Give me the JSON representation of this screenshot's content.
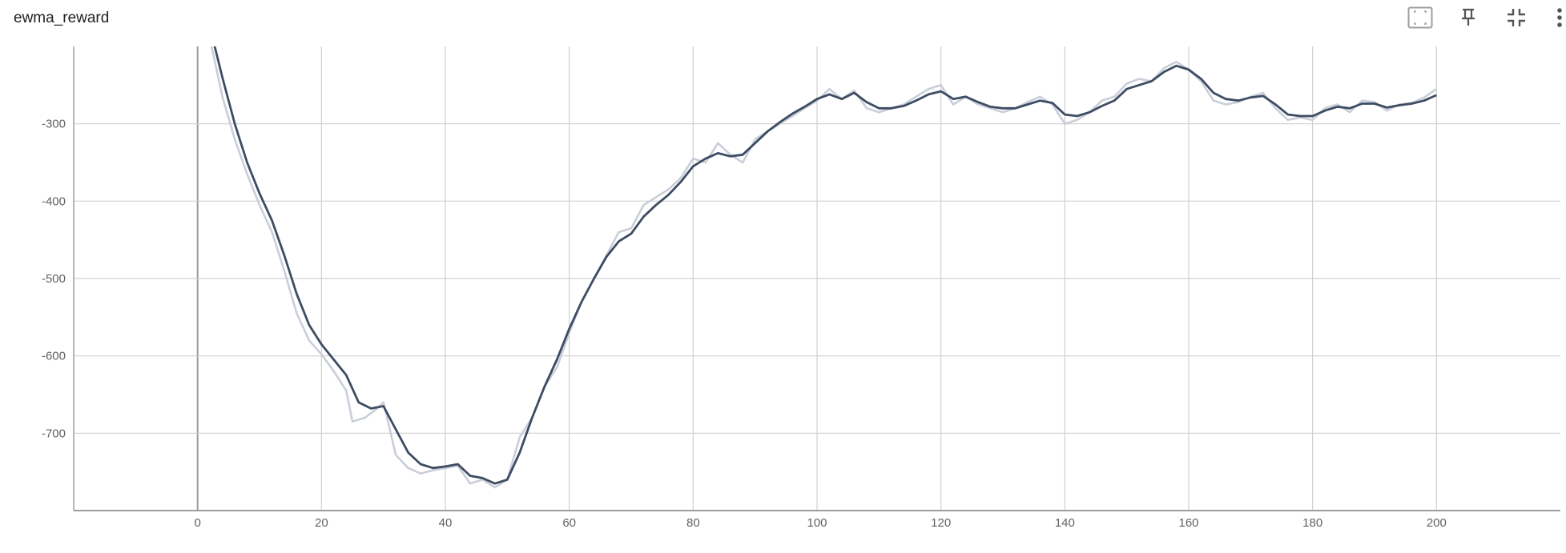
{
  "card": {
    "title": "ewma_reward",
    "toolbar": {
      "fit": "fit-domain-icon",
      "pin": "pin-icon",
      "collapse": "collapse-icon",
      "more": "more-vert-icon"
    }
  },
  "colors": {
    "smoothed": "#3d4c63",
    "raw": "#c9ced9",
    "grid": "#d0d0d0",
    "axis": "#9e9e9e",
    "zero_line": "#9a9a9a"
  },
  "chart_data": {
    "type": "line",
    "title": "ewma_reward",
    "xlabel": "",
    "ylabel": "",
    "xlim": [
      -20,
      220
    ],
    "ylim": [
      -800,
      -200
    ],
    "x_ticks": [
      0,
      20,
      40,
      60,
      80,
      100,
      120,
      140,
      160,
      180,
      200
    ],
    "y_ticks": [
      -300,
      -400,
      -500,
      -600,
      -700
    ],
    "grid": true,
    "legend": "none",
    "series": [
      {
        "role": "raw",
        "points": [
          [
            2,
            -190
          ],
          [
            4,
            -265
          ],
          [
            6,
            -320
          ],
          [
            8,
            -365
          ],
          [
            10,
            -405
          ],
          [
            12,
            -440
          ],
          [
            14,
            -490
          ],
          [
            16,
            -545
          ],
          [
            18,
            -580
          ],
          [
            20,
            -598
          ],
          [
            22,
            -620
          ],
          [
            24,
            -645
          ],
          [
            25,
            -685
          ],
          [
            27,
            -680
          ],
          [
            29,
            -668
          ],
          [
            30,
            -660
          ],
          [
            32,
            -728
          ],
          [
            34,
            -745
          ],
          [
            36,
            -752
          ],
          [
            38,
            -748
          ],
          [
            40,
            -745
          ],
          [
            42,
            -742
          ],
          [
            44,
            -765
          ],
          [
            46,
            -760
          ],
          [
            48,
            -770
          ],
          [
            50,
            -760
          ],
          [
            52,
            -705
          ],
          [
            54,
            -680
          ],
          [
            56,
            -640
          ],
          [
            58,
            -615
          ],
          [
            60,
            -570
          ],
          [
            62,
            -530
          ],
          [
            64,
            -500
          ],
          [
            66,
            -470
          ],
          [
            68,
            -440
          ],
          [
            70,
            -435
          ],
          [
            72,
            -405
          ],
          [
            74,
            -395
          ],
          [
            76,
            -385
          ],
          [
            78,
            -370
          ],
          [
            80,
            -345
          ],
          [
            82,
            -350
          ],
          [
            84,
            -325
          ],
          [
            86,
            -340
          ],
          [
            88,
            -350
          ],
          [
            90,
            -320
          ],
          [
            92,
            -310
          ],
          [
            94,
            -300
          ],
          [
            96,
            -290
          ],
          [
            98,
            -280
          ],
          [
            100,
            -270
          ],
          [
            102,
            -255
          ],
          [
            104,
            -268
          ],
          [
            106,
            -257
          ],
          [
            108,
            -280
          ],
          [
            110,
            -285
          ],
          [
            112,
            -280
          ],
          [
            114,
            -275
          ],
          [
            116,
            -265
          ],
          [
            118,
            -255
          ],
          [
            120,
            -250
          ],
          [
            122,
            -275
          ],
          [
            124,
            -265
          ],
          [
            126,
            -275
          ],
          [
            128,
            -280
          ],
          [
            130,
            -285
          ],
          [
            132,
            -280
          ],
          [
            134,
            -272
          ],
          [
            136,
            -265
          ],
          [
            138,
            -275
          ],
          [
            140,
            -300
          ],
          [
            142,
            -295
          ],
          [
            144,
            -285
          ],
          [
            146,
            -270
          ],
          [
            148,
            -265
          ],
          [
            150,
            -248
          ],
          [
            152,
            -242
          ],
          [
            154,
            -245
          ],
          [
            156,
            -228
          ],
          [
            158,
            -220
          ],
          [
            160,
            -230
          ],
          [
            162,
            -245
          ],
          [
            164,
            -270
          ],
          [
            166,
            -275
          ],
          [
            168,
            -272
          ],
          [
            170,
            -265
          ],
          [
            172,
            -260
          ],
          [
            174,
            -280
          ],
          [
            176,
            -295
          ],
          [
            178,
            -292
          ],
          [
            180,
            -295
          ],
          [
            182,
            -280
          ],
          [
            184,
            -275
          ],
          [
            186,
            -285
          ],
          [
            188,
            -270
          ],
          [
            190,
            -272
          ],
          [
            192,
            -283
          ],
          [
            194,
            -275
          ],
          [
            196,
            -273
          ],
          [
            198,
            -266
          ],
          [
            200,
            -255
          ]
        ]
      },
      {
        "role": "smoothed",
        "points": [
          [
            2,
            -175
          ],
          [
            4,
            -240
          ],
          [
            6,
            -300
          ],
          [
            8,
            -350
          ],
          [
            10,
            -390
          ],
          [
            12,
            -425
          ],
          [
            14,
            -470
          ],
          [
            16,
            -520
          ],
          [
            18,
            -560
          ],
          [
            20,
            -585
          ],
          [
            22,
            -605
          ],
          [
            24,
            -625
          ],
          [
            26,
            -660
          ],
          [
            28,
            -668
          ],
          [
            30,
            -665
          ],
          [
            32,
            -695
          ],
          [
            34,
            -725
          ],
          [
            36,
            -740
          ],
          [
            38,
            -745
          ],
          [
            40,
            -743
          ],
          [
            42,
            -740
          ],
          [
            44,
            -755
          ],
          [
            46,
            -758
          ],
          [
            48,
            -765
          ],
          [
            50,
            -760
          ],
          [
            52,
            -725
          ],
          [
            54,
            -680
          ],
          [
            56,
            -640
          ],
          [
            58,
            -605
          ],
          [
            60,
            -565
          ],
          [
            62,
            -530
          ],
          [
            64,
            -500
          ],
          [
            66,
            -472
          ],
          [
            68,
            -452
          ],
          [
            70,
            -442
          ],
          [
            72,
            -420
          ],
          [
            74,
            -405
          ],
          [
            76,
            -392
          ],
          [
            78,
            -375
          ],
          [
            80,
            -355
          ],
          [
            82,
            -345
          ],
          [
            84,
            -338
          ],
          [
            86,
            -342
          ],
          [
            88,
            -340
          ],
          [
            90,
            -325
          ],
          [
            92,
            -310
          ],
          [
            94,
            -298
          ],
          [
            96,
            -287
          ],
          [
            98,
            -278
          ],
          [
            100,
            -268
          ],
          [
            102,
            -262
          ],
          [
            104,
            -268
          ],
          [
            106,
            -260
          ],
          [
            108,
            -272
          ],
          [
            110,
            -280
          ],
          [
            112,
            -280
          ],
          [
            114,
            -277
          ],
          [
            116,
            -270
          ],
          [
            118,
            -262
          ],
          [
            120,
            -258
          ],
          [
            122,
            -268
          ],
          [
            124,
            -265
          ],
          [
            126,
            -272
          ],
          [
            128,
            -278
          ],
          [
            130,
            -280
          ],
          [
            132,
            -280
          ],
          [
            134,
            -275
          ],
          [
            136,
            -270
          ],
          [
            138,
            -273
          ],
          [
            140,
            -288
          ],
          [
            142,
            -290
          ],
          [
            144,
            -285
          ],
          [
            146,
            -277
          ],
          [
            148,
            -270
          ],
          [
            150,
            -255
          ],
          [
            152,
            -250
          ],
          [
            154,
            -245
          ],
          [
            156,
            -233
          ],
          [
            158,
            -225
          ],
          [
            160,
            -230
          ],
          [
            162,
            -242
          ],
          [
            164,
            -260
          ],
          [
            166,
            -268
          ],
          [
            168,
            -270
          ],
          [
            170,
            -266
          ],
          [
            172,
            -264
          ],
          [
            174,
            -275
          ],
          [
            176,
            -288
          ],
          [
            178,
            -290
          ],
          [
            180,
            -290
          ],
          [
            182,
            -283
          ],
          [
            184,
            -278
          ],
          [
            186,
            -280
          ],
          [
            188,
            -274
          ],
          [
            190,
            -274
          ],
          [
            192,
            -279
          ],
          [
            194,
            -276
          ],
          [
            196,
            -274
          ],
          [
            198,
            -270
          ],
          [
            200,
            -263
          ]
        ]
      }
    ]
  }
}
